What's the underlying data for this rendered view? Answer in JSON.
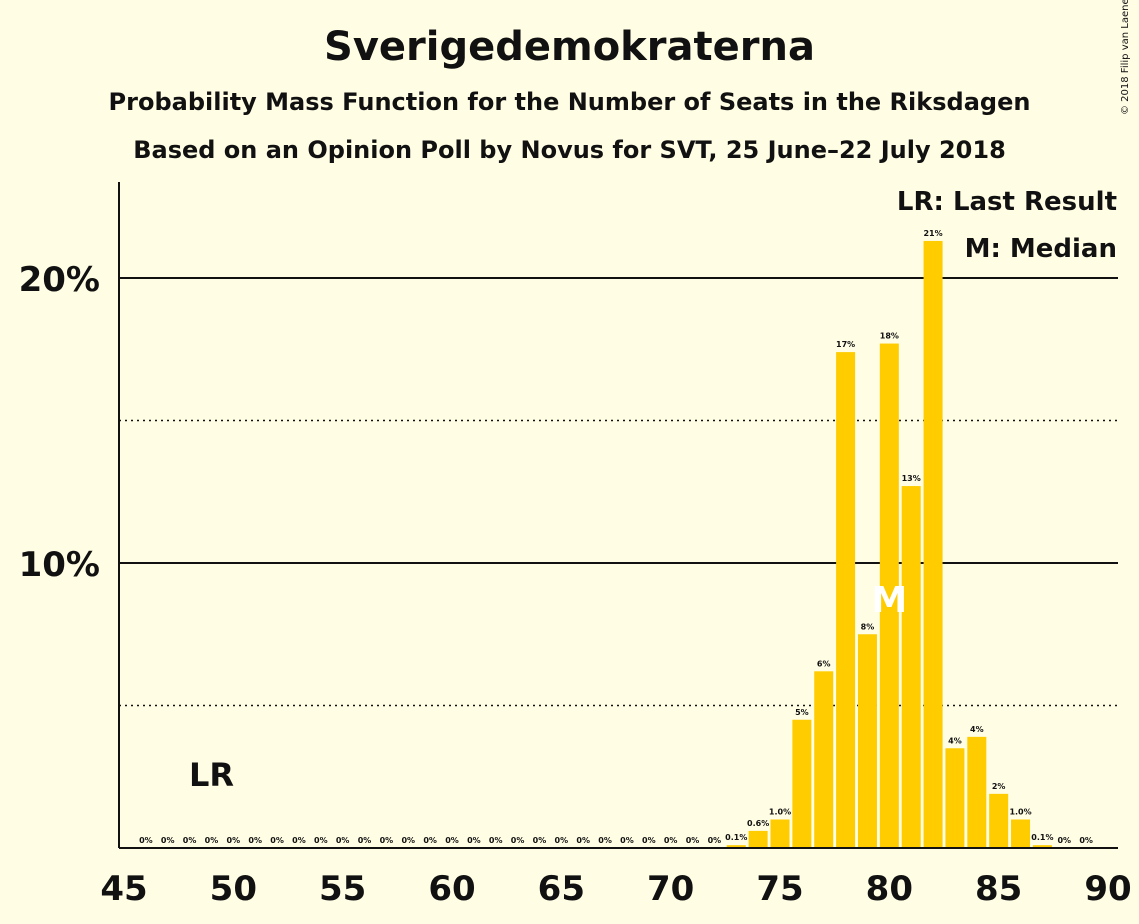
{
  "title": "Sverigedemokraterna",
  "subtitle1": "Probability Mass Function for the Number of Seats in the Riksdagen",
  "subtitle2": "Based on an Opinion Poll by Novus for SVT, 25 June–22 July 2018",
  "copyright": "© 2018 Filip van Laenen",
  "colors": {
    "bar": "#ffcc00",
    "background": "#fffde4",
    "text": "#111111",
    "median_label": "#ffffff"
  },
  "chart_data": {
    "type": "bar",
    "title": "Sverigedemokraterna",
    "xlabel": "",
    "ylabel": "",
    "xlim": [
      45,
      90
    ],
    "ylim": [
      0,
      23
    ],
    "x_ticks": [
      45,
      50,
      55,
      60,
      65,
      70,
      75,
      80,
      85,
      90
    ],
    "x_tick_labels": [
      "45",
      "50",
      "55",
      "60",
      "65",
      "70",
      "75",
      "80",
      "85",
      "90"
    ],
    "y_ticks_solid": [
      10,
      20
    ],
    "y_tick_labels": [
      "10%",
      "20%"
    ],
    "y_ticks_dotted": [
      5,
      15
    ],
    "legend": [
      "LR: Last Result",
      "M: Median"
    ],
    "legend_position": "top-right",
    "last_result": {
      "seats": 49,
      "label": "LR"
    },
    "median": {
      "seats": 80,
      "label": "M"
    },
    "x": [
      46,
      47,
      48,
      49,
      50,
      51,
      52,
      53,
      54,
      55,
      56,
      57,
      58,
      59,
      60,
      61,
      62,
      63,
      64,
      65,
      66,
      67,
      68,
      69,
      70,
      71,
      72,
      73,
      74,
      75,
      76,
      77,
      78,
      79,
      80,
      81,
      82,
      83,
      84,
      85,
      86,
      87,
      88,
      89
    ],
    "values": [
      0,
      0,
      0,
      0,
      0,
      0,
      0,
      0,
      0,
      0,
      0,
      0,
      0,
      0,
      0,
      0,
      0,
      0,
      0,
      0,
      0,
      0,
      0,
      0,
      0,
      0,
      0,
      0.1,
      0.6,
      1.0,
      4.5,
      6.2,
      17.4,
      7.5,
      17.7,
      12.7,
      21.3,
      3.5,
      3.9,
      1.9,
      1.0,
      0.1,
      0,
      0
    ],
    "labels": [
      "0%",
      "0%",
      "0%",
      "0%",
      "0%",
      "0%",
      "0%",
      "0%",
      "0%",
      "0%",
      "0%",
      "0%",
      "0%",
      "0%",
      "0%",
      "0%",
      "0%",
      "0%",
      "0%",
      "0%",
      "0%",
      "0%",
      "0%",
      "0%",
      "0%",
      "0%",
      "0%",
      "0.1%",
      "0.6%",
      "1.0%",
      "5%",
      "6%",
      "17%",
      "8%",
      "18%",
      "13%",
      "21%",
      "4%",
      "4%",
      "2%",
      "1.0%",
      "0.1%",
      "0%",
      "0%"
    ]
  }
}
